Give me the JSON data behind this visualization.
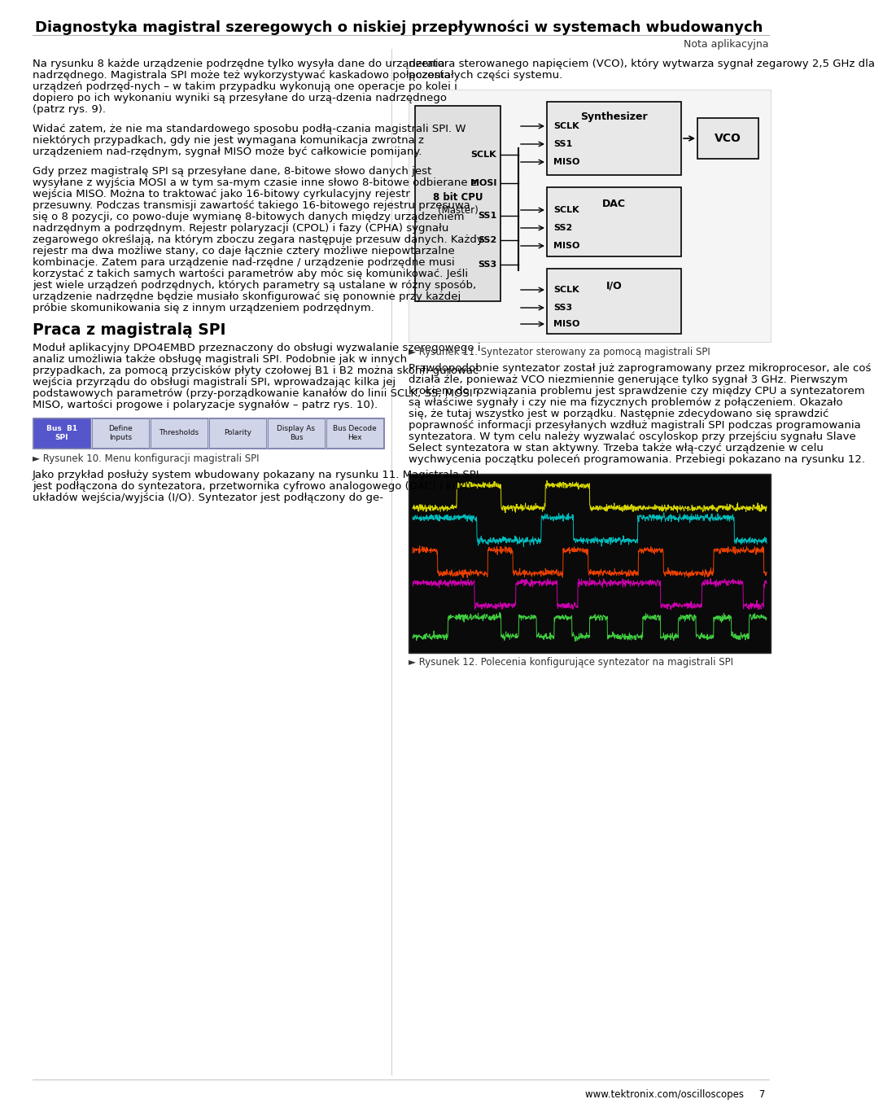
{
  "title": "Diagnostyka magistral szeregowych o niskiej przepływności w systemach wbudowanych",
  "nota": "Nota aplikacyjna",
  "footer": "www.tektronix.com/oscilloscopes     7",
  "p1": "Na rysunku 8 każde urządzenie podrzędne tylko wysyła dane do urządzenia nadrzędnego. Magistrala SPI może też wykorzystywać kaskadowo połączenia urządzeń podrzęd-nych – w takim przypadku wykonują one operacje po kolei i dopiero po ich wykonaniu wyniki są przesyłane do urzą-dzenia nadrzędnego (patrz rys. 9).",
  "p2": "Widać zatem, że nie ma standardowego sposobu podłą-czania magistrali SPI. W niektórych przypadkach, gdy nie jest wymagana komunikacja zwrotna z urządzeniem nad-rzędnym, sygnał MISO może być całkowicie pomijany.",
  "p3": "Gdy przez magistralę SPI są przesyłane dane, 8-bitowe słowo danych jest wysyłane z wyjścia MOSI a w tym sa-mym czasie inne słowo 8-bitowe odbierane z wejścia MISO. Można to traktować jako 16-bitowy cyrkulacyjny rejestr przesuwny. Podczas transmisji zawartość takiego 16-bitowego rejestru przesuwa się o 8 pozycji, co powo-duje wymianę 8-bitowych danych między urządzeniem nadrzędnym a podrzędnym. Rejestr polaryzacji (CPOL) i fazy (CPHA) sygnału zegarowego określają, na którym zboczu zegara następuje przesuw danych. Każdy rejestr ma dwa możliwe stany, co daje łącznie cztery możliwe niepowtarzalne kombinacje. Zatem para urządzenie nad-rzędne / urządzenie podrzędne musi korzystać z takich samych wartości parametrów aby móc się komunikować. Jeśli jest wiele urządzeń podrzędnych, których parametry są ustalane w różny sposób, urządzenie nadrzędne będzie musiało skonfigurować się ponownie przy każdej próbie skomunikowania się z innym urządzeniem podrzędnym.",
  "heading": "Praca z magistralą SPI",
  "p4": "Moduł aplikacyjny DPO4EMBD przeznaczony do obsługi wyzwalanie szeregowego i analiz umożliwia także obsługę magistrali SPI. Podobnie jak w innych przypadkach, za pomocą przycisków płyty czołowej B1 i B2 można skonfi-gurować wejścia przyrządu do obsługi magistrali SPI, wprowadzając kilka jej podstawowych parametrów (przy-porządkowanie kanałów do linii SCLK, SS, MOSI i MISO, wartości progowe i polaryzacje sygnałów – patrz rys. 10).",
  "cap10": "► Rysunek 10. Menu konfiguracji magistrali SPI",
  "p5": "Jako przykład posłuży system wbudowany pokazany na rysunku 11. Magistrala SPI jest podłączona do syntezatora, przetwornika cyfrowo analogowego (DAC) i kilku układów wejścia/wyjścia (I/O). Syntezator jest podłączony do ge-",
  "r_p1": "neratora sterowanego napięciem (VCO), który wytwarza sygnał zegarowy 2,5 GHz dla pozostałych części systemu.",
  "cap11": "► Rysunek 11. Syntezator sterowany za pomocą magistrali SPI",
  "r_p2": "Prawdopodobnie syntezator został już zaprogramowany przez mikroprocesor, ale coś działa źle, ponieważ VCO niezmiennie generujące tylko sygnał 3 GHz. Pierwszym krokiem do rozwiązania problemu jest sprawdzenie czy między CPU a syntezatorem są właściwe sygnały i czy nie ma fizycznych problemów z połączeniem. Okazało się, że tutaj wszystko jest w porządku. Następnie zdecydowano się sprawdzić poprawność informacji przesyłanych wzdłuż magistrali SPI podczas programowania syntezatora. W tym celu należy wyzwalać oscyloskop przy przejściu sygnału Slave Select syntezatora w stan aktywny. Trzeba także włą-czyć urządzenie w celu wychwycenia początku poleceń programowania. Przebiegi pokazano na rysunku 12.",
  "cap12": "► Rysunek 12. Polecenia konfigurujące syntezator na magistrali SPI",
  "background_color": "#ffffff",
  "text_color": "#000000",
  "title_color": "#000000",
  "separator_color": "#cccccc",
  "btn_labels": [
    "Bus  B1\nSPI",
    "Define\nInputs",
    "Thresholds",
    "Polarity",
    "Display As\nBus",
    "Bus Decode\nHex"
  ],
  "btn_colors": [
    "#5555cc",
    "#d0d4e8",
    "#d0d4e8",
    "#d0d4e8",
    "#d0d4e8",
    "#d0d4e8"
  ]
}
